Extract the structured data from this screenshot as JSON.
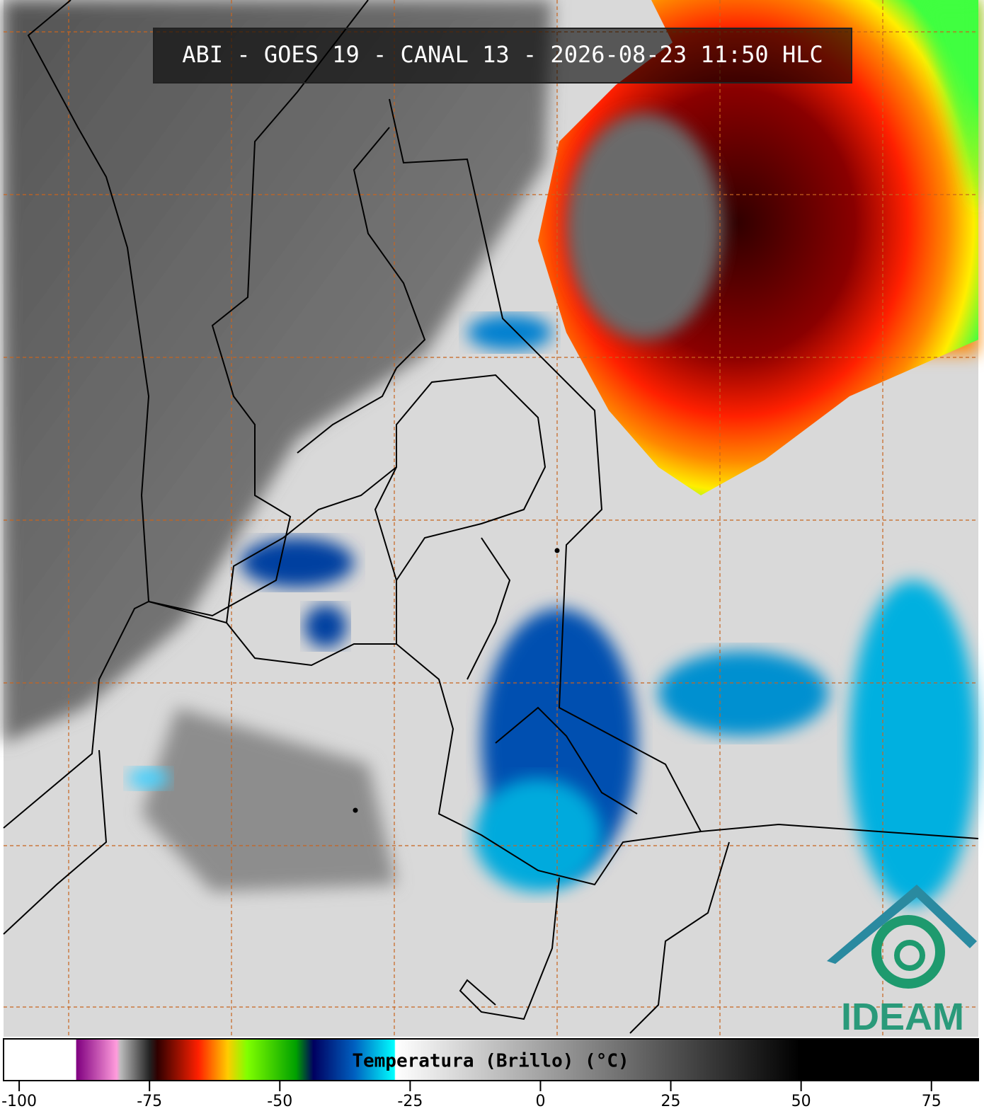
{
  "header": {
    "title": "ABI - GOES 19 - CANAL 13 - 2026-08-23 11:50 HLC"
  },
  "colorbar": {
    "label": "Temperatura (Brillo) (°C)",
    "range": [
      -103,
      84
    ],
    "ticks": [
      -100,
      -75,
      -50,
      -25,
      0,
      25,
      50,
      75
    ]
  },
  "logo": {
    "text": "IDEAM"
  }
}
